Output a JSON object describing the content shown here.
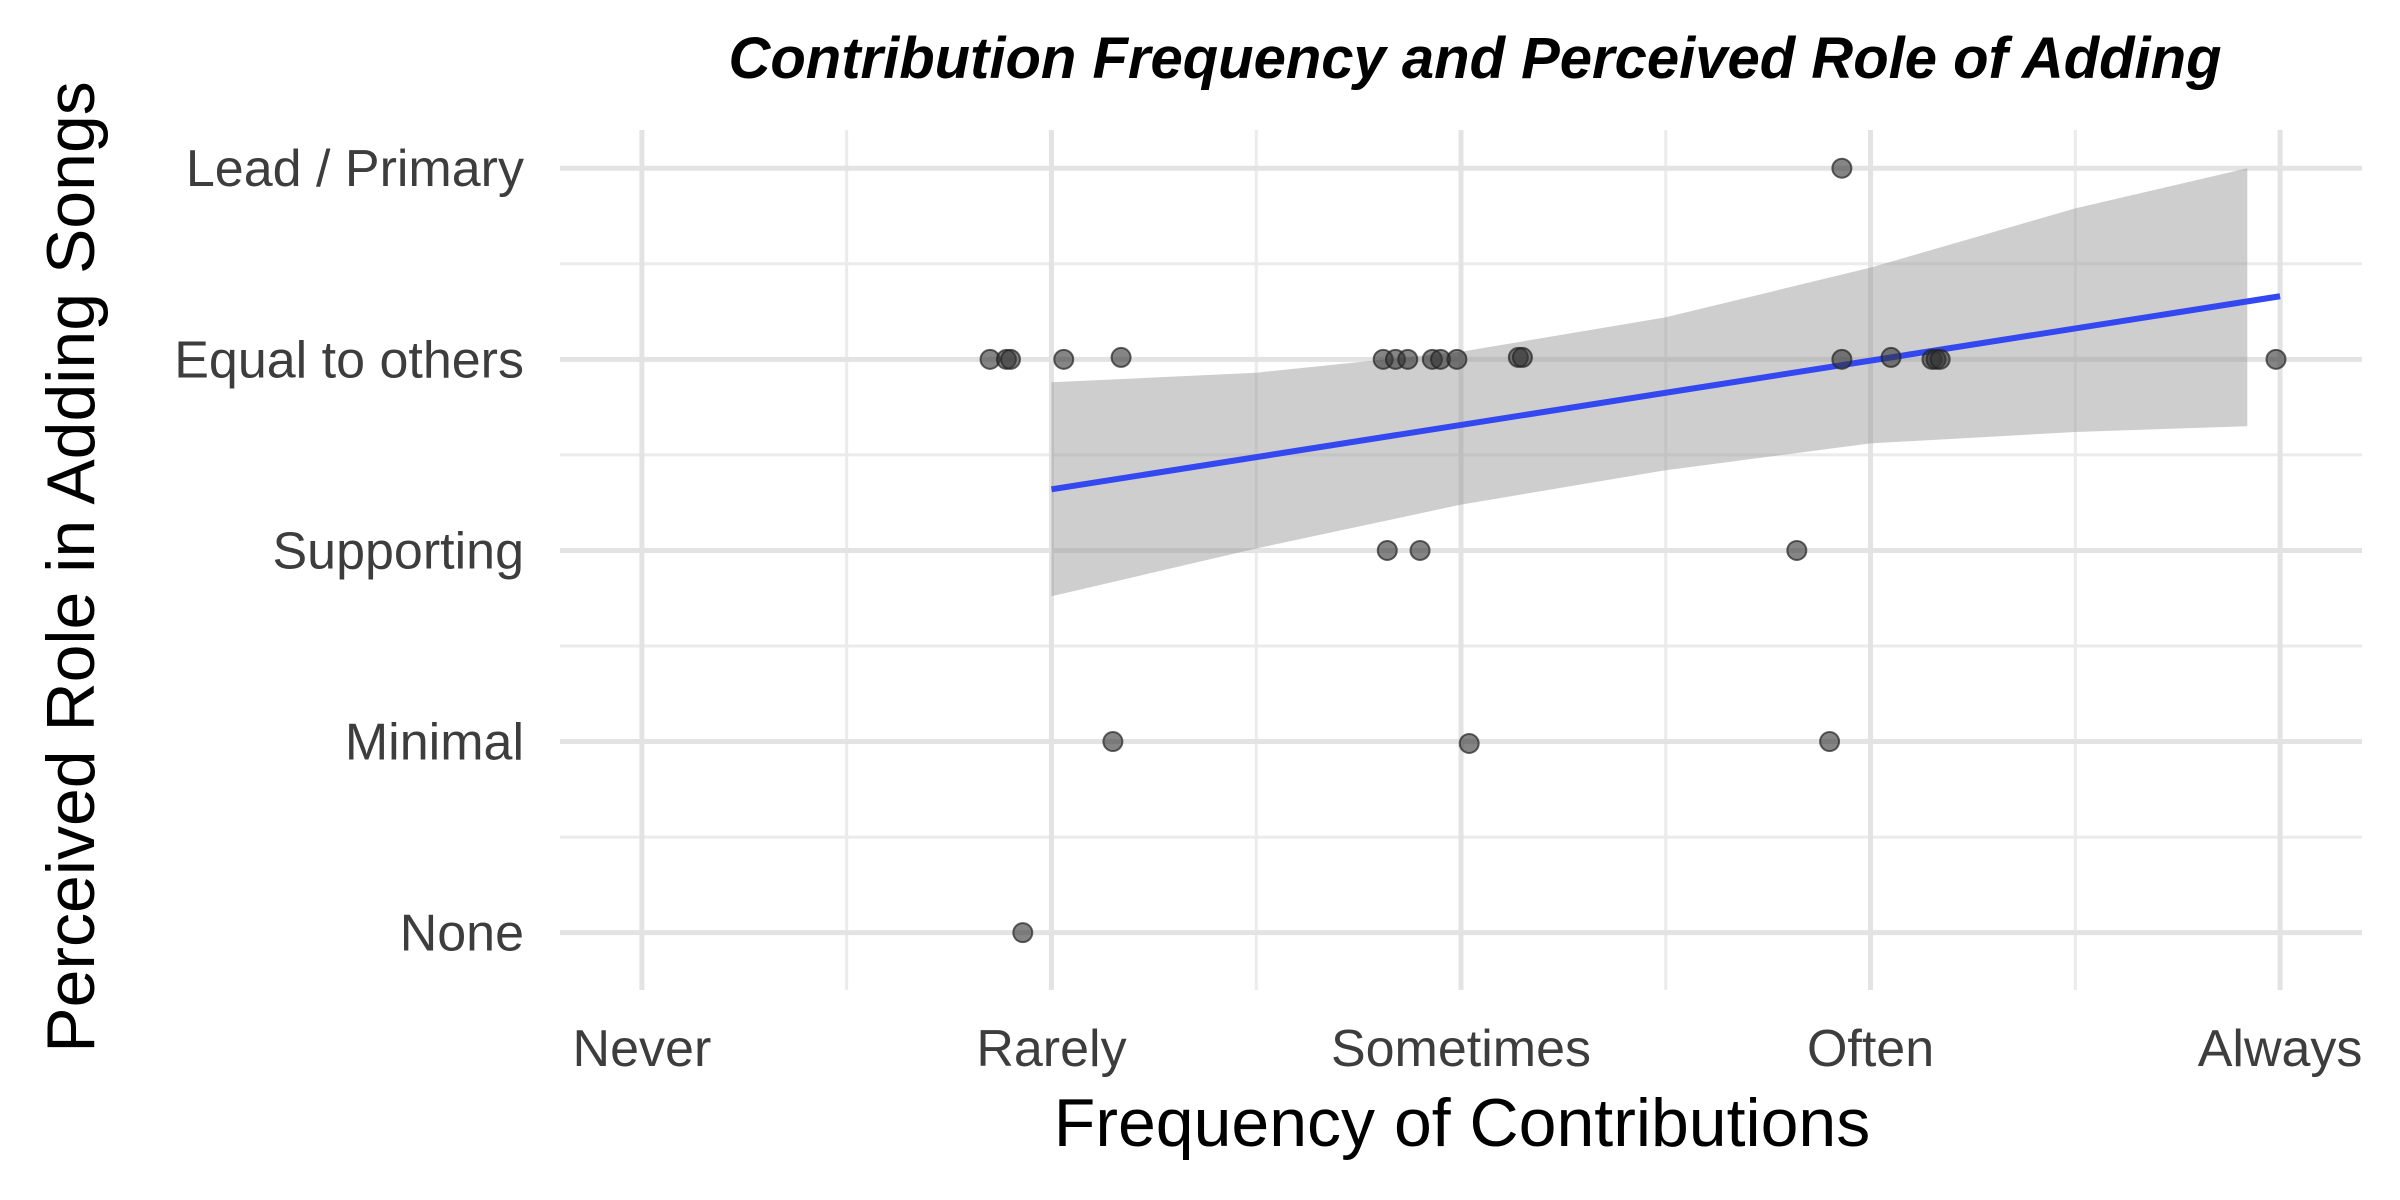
{
  "chart_data": {
    "type": "scatter",
    "title": "Contribution Frequency and Perceived Role of Adding",
    "xlabel": "Frequency of Contributions",
    "ylabel": "Perceived Role in Adding Songs",
    "x_categories": [
      "Never",
      "Rarely",
      "Sometimes",
      "Often",
      "Always"
    ],
    "y_categories": [
      "None",
      "Minimal",
      "Supporting",
      "Equal to others",
      "Lead / Primary"
    ],
    "xlim": [
      0.8,
      5.2
    ],
    "ylim": [
      0.7,
      5.2
    ],
    "grid": true,
    "legend": "none",
    "point_color": "#333333",
    "point_opacity": 0.6,
    "trend_color": "#3348f0",
    "band_color": "#999999",
    "points": [
      {
        "x": 1.85,
        "y": 4.0
      },
      {
        "x": 1.89,
        "y": 4.0
      },
      {
        "x": 1.9,
        "y": 4.0
      },
      {
        "x": 2.03,
        "y": 4.0
      },
      {
        "x": 2.17,
        "y": 4.01
      },
      {
        "x": 2.81,
        "y": 4.0
      },
      {
        "x": 2.84,
        "y": 4.0
      },
      {
        "x": 2.87,
        "y": 4.0
      },
      {
        "x": 2.93,
        "y": 4.0
      },
      {
        "x": 2.95,
        "y": 4.0
      },
      {
        "x": 2.99,
        "y": 4.0
      },
      {
        "x": 3.14,
        "y": 4.01
      },
      {
        "x": 3.15,
        "y": 4.01
      },
      {
        "x": 3.93,
        "y": 4.0
      },
      {
        "x": 4.05,
        "y": 4.01
      },
      {
        "x": 4.15,
        "y": 4.0
      },
      {
        "x": 4.16,
        "y": 4.0
      },
      {
        "x": 4.17,
        "y": 4.0
      },
      {
        "x": 4.99,
        "y": 4.0
      },
      {
        "x": 3.93,
        "y": 5.0
      },
      {
        "x": 2.82,
        "y": 3.0
      },
      {
        "x": 2.9,
        "y": 3.0
      },
      {
        "x": 3.82,
        "y": 3.0
      },
      {
        "x": 2.15,
        "y": 2.0
      },
      {
        "x": 3.02,
        "y": 1.99
      },
      {
        "x": 3.9,
        "y": 2.0
      },
      {
        "x": 1.93,
        "y": 1.0
      }
    ],
    "trend": {
      "x_range": [
        2.0,
        5.0
      ],
      "y_at": [
        3.32,
        4.33
      ],
      "band_upper": [
        [
          2.0,
          3.88
        ],
        [
          2.5,
          3.93
        ],
        [
          3.0,
          4.04
        ],
        [
          3.5,
          4.22
        ],
        [
          4.0,
          4.48
        ],
        [
          4.5,
          4.79
        ],
        [
          4.92,
          5.0
        ]
      ],
      "band_lower": [
        [
          4.92,
          3.65
        ],
        [
          4.5,
          3.62
        ],
        [
          4.0,
          3.56
        ],
        [
          3.5,
          3.42
        ],
        [
          3.0,
          3.24
        ],
        [
          2.5,
          3.01
        ],
        [
          2.0,
          2.76
        ]
      ]
    }
  }
}
